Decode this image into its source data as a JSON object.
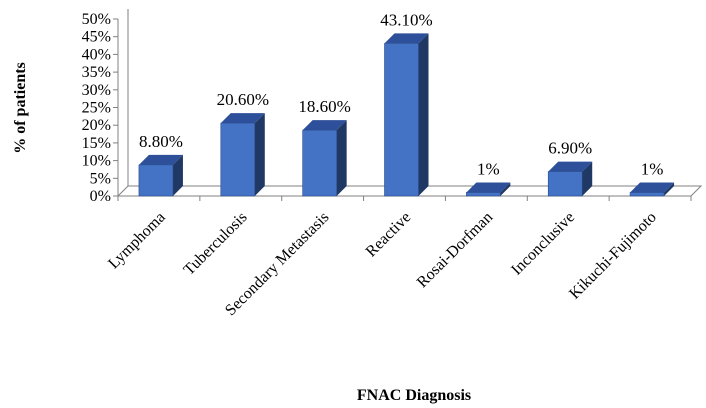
{
  "chart_data": {
    "type": "bar",
    "categories": [
      "Lymphoma",
      "Tuberculosis",
      "Secondary Metastasis",
      "Reactive",
      "Rosai-Dorfman",
      "Inconclusive",
      "Kikuchi-Fujimoto"
    ],
    "values": [
      8.8,
      20.6,
      18.6,
      43.1,
      1,
      6.9,
      1
    ],
    "data_labels": [
      "8.80%",
      "20.60%",
      "18.60%",
      "43.10%",
      "1%",
      "6.90%",
      "1%"
    ],
    "y_ticks": [
      "0%",
      "5%",
      "10%",
      "15%",
      "20%",
      "25%",
      "30%",
      "35%",
      "40%",
      "45%",
      "50%"
    ],
    "title": "",
    "xlabel": "FNAC Diagnosis",
    "ylabel": "% of patients",
    "ylim": [
      0,
      50
    ],
    "grid": false,
    "legend": "none",
    "colors": {
      "bar_front": "#4472C4",
      "bar_side": "#1F3864",
      "bar_top": "#2E4F9A",
      "bar_edge": "#2B4C8C",
      "axis": "#808080"
    }
  }
}
